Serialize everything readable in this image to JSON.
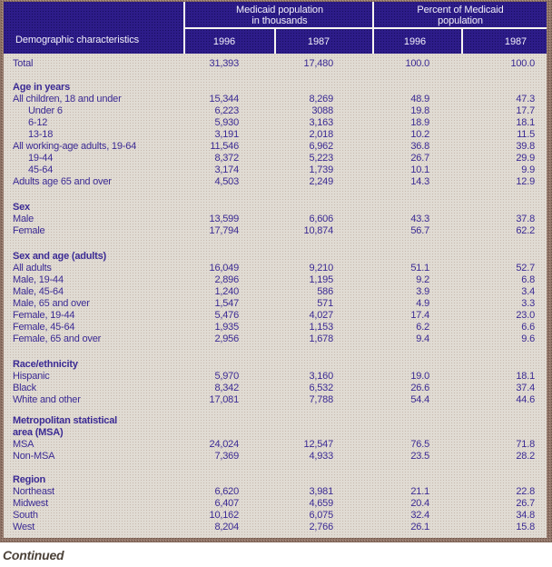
{
  "table": {
    "header": {
      "row_label": "Demographic characteristics",
      "groups": [
        {
          "title": "Medicaid population\nin thousands",
          "cols": [
            "1996",
            "1987"
          ]
        },
        {
          "title": "Percent of Medicaid\npopulation",
          "cols": [
            "1996",
            "1987"
          ]
        }
      ]
    },
    "total_row": {
      "label": "Total",
      "indent": 1,
      "values": [
        "31,393",
        "17,480",
        "100.0",
        "100.0"
      ]
    },
    "sections": [
      {
        "id": "age",
        "heading": "Age in years",
        "rows": [
          {
            "label": "All children, 18 and under",
            "indent": 1,
            "values": [
              "15,344",
              "8,269",
              "48.9",
              "47.3"
            ]
          },
          {
            "label": "Under 6",
            "indent": 2,
            "values": [
              "6,223",
              "3088",
              "19.8",
              "17.7"
            ]
          },
          {
            "label": "6-12",
            "indent": 2,
            "values": [
              "5,930",
              "3,163",
              "18.9",
              "18.1"
            ]
          },
          {
            "label": "13-18",
            "indent": 2,
            "values": [
              "3,191",
              "2,018",
              "10.2",
              "11.5"
            ]
          },
          {
            "label": "All working-age adults, 19-64",
            "indent": 1,
            "values": [
              "11,546",
              "6,962",
              "36.8",
              "39.8"
            ]
          },
          {
            "label": "19-44",
            "indent": 2,
            "values": [
              "8,372",
              "5,223",
              "26.7",
              "29.9"
            ]
          },
          {
            "label": "45-64",
            "indent": 2,
            "values": [
              "3,174",
              "1,739",
              "10.1",
              "9.9"
            ]
          },
          {
            "label": "Adults age 65 and over",
            "indent": 1,
            "values": [
              "4,503",
              "2,249",
              "14.3",
              "12.9"
            ]
          }
        ]
      },
      {
        "id": "sex",
        "heading": "Sex",
        "rows": [
          {
            "label": "Male",
            "indent": 1,
            "values": [
              "13,599",
              "6,606",
              "43.3",
              "37.8"
            ]
          },
          {
            "label": "Female",
            "indent": 1,
            "values": [
              "17,794",
              "10,874",
              "56.7",
              "62.2"
            ]
          }
        ]
      },
      {
        "id": "sexage",
        "heading": "Sex and age (adults)",
        "rows": [
          {
            "label": "All adults",
            "indent": 1,
            "values": [
              "16,049",
              "9,210",
              "51.1",
              "52.7"
            ]
          },
          {
            "label": "Male, 19-44",
            "indent": 1,
            "values": [
              "2,896",
              "1,195",
              "9.2",
              "6.8"
            ]
          },
          {
            "label": "Male, 45-64",
            "indent": 1,
            "values": [
              "1,240",
              "586",
              "3.9",
              "3.4"
            ]
          },
          {
            "label": "Male, 65 and over",
            "indent": 1,
            "values": [
              "1,547",
              "571",
              "4.9",
              "3.3"
            ]
          },
          {
            "label": "Female, 19-44",
            "indent": 1,
            "values": [
              "5,476",
              "4,027",
              "17.4",
              "23.0"
            ]
          },
          {
            "label": "Female, 45-64",
            "indent": 1,
            "values": [
              "1,935",
              "1,153",
              "6.2",
              "6.6"
            ]
          },
          {
            "label": "Female, 65 and over",
            "indent": 1,
            "values": [
              "2,956",
              "1,678",
              "9.4",
              "9.6"
            ]
          }
        ]
      },
      {
        "id": "race",
        "heading": "Race/ethnicity",
        "rows": [
          {
            "label": "Hispanic",
            "indent": 1,
            "values": [
              "5,970",
              "3,160",
              "19.0",
              "18.1"
            ]
          },
          {
            "label": "Black",
            "indent": 1,
            "values": [
              "8,342",
              "6,532",
              "26.6",
              "37.4"
            ]
          },
          {
            "label": "White and other",
            "indent": 1,
            "values": [
              "17,081",
              "7,788",
              "54.4",
              "44.6"
            ]
          }
        ]
      },
      {
        "id": "msa",
        "heading": "Metropolitan statistical\narea (MSA)",
        "rows": [
          {
            "label": "MSA",
            "indent": 1,
            "values": [
              "24,024",
              "12,547",
              "76.5",
              "71.8"
            ]
          },
          {
            "label": "Non-MSA",
            "indent": 1,
            "values": [
              "7,369",
              "4,933",
              "23.5",
              "28.2"
            ]
          }
        ]
      },
      {
        "id": "region",
        "heading": "Region",
        "rows": [
          {
            "label": "Northeast",
            "indent": 1,
            "values": [
              "6,620",
              "3,981",
              "21.1",
              "22.8"
            ]
          },
          {
            "label": "Midwest",
            "indent": 1,
            "values": [
              "6,407",
              "4,659",
              "20.4",
              "26.7"
            ]
          },
          {
            "label": "South",
            "indent": 1,
            "values": [
              "10,162",
              "6,075",
              "32.4",
              "34.8"
            ]
          },
          {
            "label": "West",
            "indent": 1,
            "values": [
              "8,204",
              "2,766",
              "26.1",
              "15.8"
            ]
          }
        ]
      }
    ],
    "footer_note": "Continued"
  },
  "colors": {
    "header_bg": "#2d1c89",
    "body_bg": "#e0dbd3",
    "frame_brown": "#8e7366",
    "text_purple": "#3b2a94",
    "header_text": "#f3f1fa",
    "continued_text": "#4b4138"
  }
}
